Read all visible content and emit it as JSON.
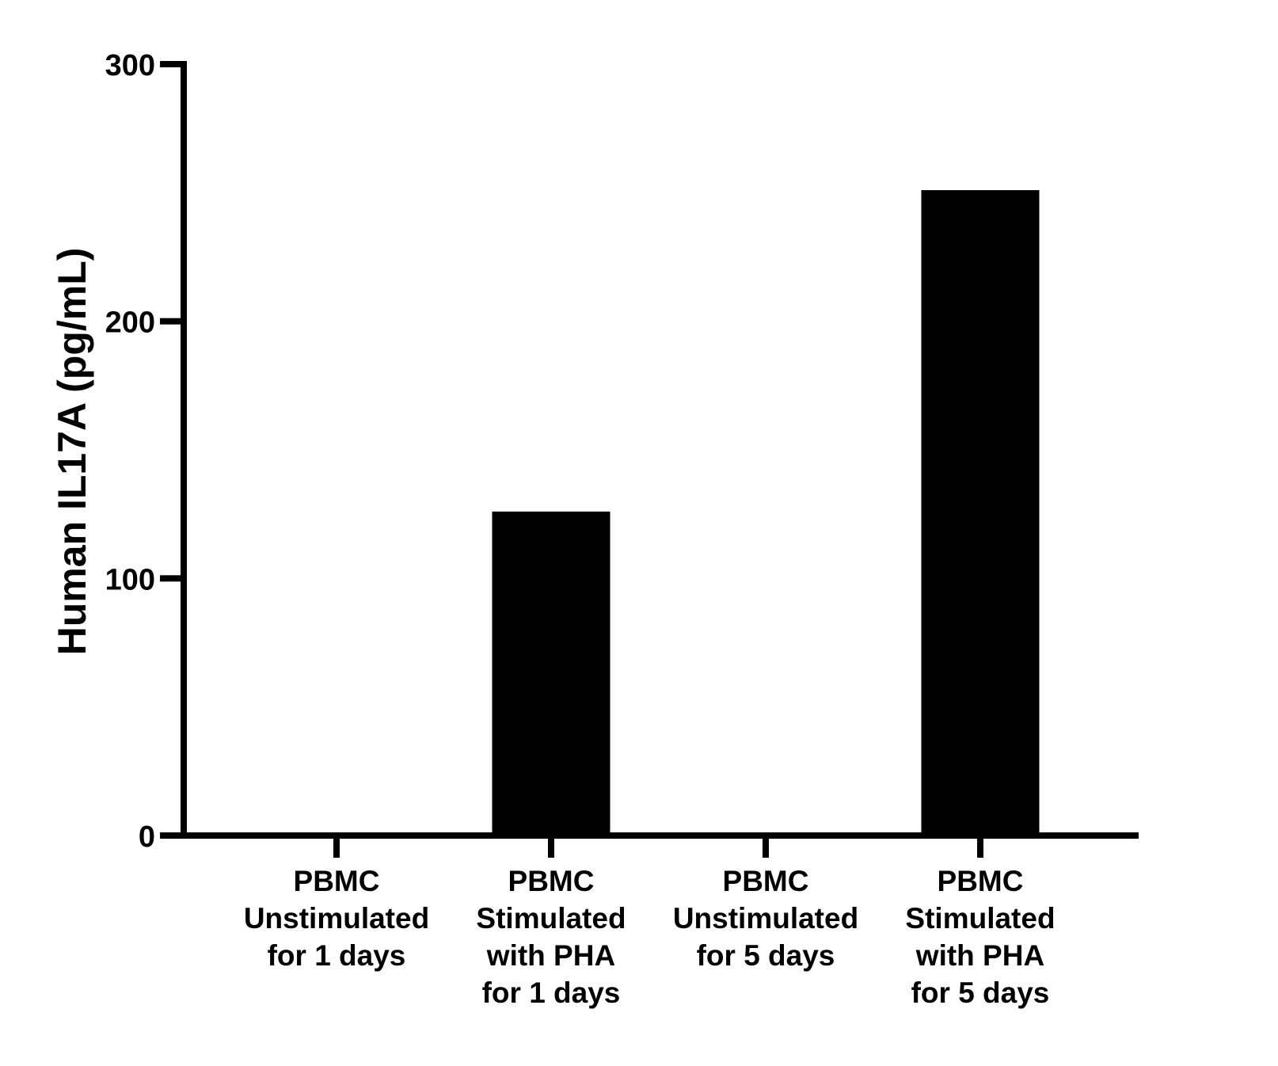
{
  "chart_data": {
    "type": "bar",
    "title": "",
    "xlabel": "",
    "ylabel": "Human IL17A (pg/mL)",
    "ylim": [
      0,
      300
    ],
    "yticks": [
      0,
      100,
      200,
      300
    ],
    "grid": false,
    "legend": null,
    "categories": [
      "PBMC Unstimulated for 1 days",
      "PBMC Stimulated with PHA for 1 days",
      "PBMC Unstimulated for 5 days",
      "PBMC Stimulated with PHA for 5 days"
    ],
    "category_lines": [
      [
        "PBMC",
        "Unstimulated",
        "for 1 days"
      ],
      [
        "PBMC",
        "Stimulated",
        "with PHA",
        "for 1 days"
      ],
      [
        "PBMC",
        "Unstimulated",
        "for 5 days"
      ],
      [
        "PBMC",
        "Stimulated",
        "with PHA",
        "for 5 days"
      ]
    ],
    "values": [
      0,
      126,
      0,
      251
    ],
    "bar_color": "#000000"
  }
}
